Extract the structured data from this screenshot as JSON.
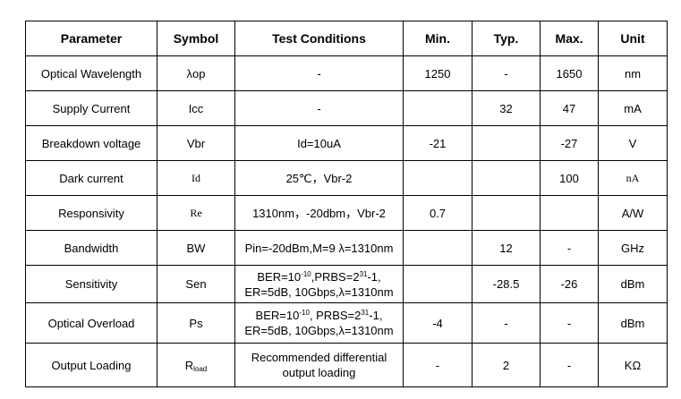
{
  "columns": [
    "Parameter",
    "Symbol",
    "Test Conditions",
    "Min.",
    "Typ.",
    "Max.",
    "Unit"
  ],
  "rows": [
    {
      "parameter": "Optical Wavelength",
      "symbol": [
        {
          "t": "λop"
        }
      ],
      "conditions": [
        [
          {
            "t": "-"
          }
        ]
      ],
      "min": "1250",
      "typ": "-",
      "max": "1650",
      "unit": "nm"
    },
    {
      "parameter": "Supply Current",
      "symbol": [
        {
          "t": "Icc"
        }
      ],
      "conditions": [
        [
          {
            "t": "-"
          }
        ]
      ],
      "min": "",
      "typ": "32",
      "max": "47",
      "unit": "mA"
    },
    {
      "parameter": "Breakdown voltage",
      "symbol": [
        {
          "t": "Vbr"
        }
      ],
      "conditions": [
        [
          {
            "t": "Id=10uA"
          }
        ]
      ],
      "min": "-21",
      "typ": "",
      "max": "-27",
      "unit": "V"
    },
    {
      "parameter": "Dark current",
      "symbol": [
        {
          "t": "Id"
        }
      ],
      "symbol_serif": true,
      "conditions": [
        [
          {
            "t": "25℃，Vbr-2"
          }
        ]
      ],
      "min": "",
      "typ": "",
      "max": "100",
      "unit": "nA",
      "unit_serif": true
    },
    {
      "parameter": "Responsivity",
      "symbol": [
        {
          "t": "Re"
        }
      ],
      "symbol_serif": true,
      "conditions": [
        [
          {
            "t": "1310nm，-20dbm，Vbr-2"
          }
        ]
      ],
      "min": "0.7",
      "typ": "",
      "max": "",
      "unit": "A/W"
    },
    {
      "parameter": "Bandwidth",
      "symbol": [
        {
          "t": "BW"
        }
      ],
      "conditions": [
        [
          {
            "t": "Pin=-20dBm,M=9 λ=1310nm"
          }
        ]
      ],
      "min": "",
      "typ": "12",
      "max": "-",
      "unit": "GHz"
    },
    {
      "parameter": "Sensitivity",
      "symbol": [
        {
          "t": "Sen"
        }
      ],
      "conditions": [
        [
          {
            "t": "BER=10"
          },
          {
            "t": "-10",
            "sup": true
          },
          {
            "t": ",PRBS=2"
          },
          {
            "t": "31",
            "sup": true
          },
          {
            "t": "-1,"
          }
        ],
        [
          {
            "t": "ER=5dB, 10Gbps,λ=1310nm"
          }
        ]
      ],
      "min": "",
      "typ": "-28.5",
      "max": "-26",
      "unit": "dBm"
    },
    {
      "parameter": "Optical Overload",
      "symbol": [
        {
          "t": "Ps"
        }
      ],
      "conditions": [
        [
          {
            "t": "BER=10"
          },
          {
            "t": "-10",
            "sup": true
          },
          {
            "t": ", PRBS=2"
          },
          {
            "t": "31",
            "sup": true
          },
          {
            "t": "-1,"
          }
        ],
        [
          {
            "t": "ER=5dB, 10Gbps,λ=1310nm"
          }
        ]
      ],
      "min": "-4",
      "typ": "-",
      "max": "-",
      "unit": "dBm"
    },
    {
      "parameter": "Output Loading",
      "symbol": [
        {
          "t": "R"
        },
        {
          "t": "load",
          "sub": true
        }
      ],
      "conditions": [
        [
          {
            "t": "Recommended differential"
          }
        ],
        [
          {
            "t": "output loading"
          }
        ]
      ],
      "min": "-",
      "typ": "2",
      "max": "-",
      "unit": "KΩ"
    }
  ]
}
